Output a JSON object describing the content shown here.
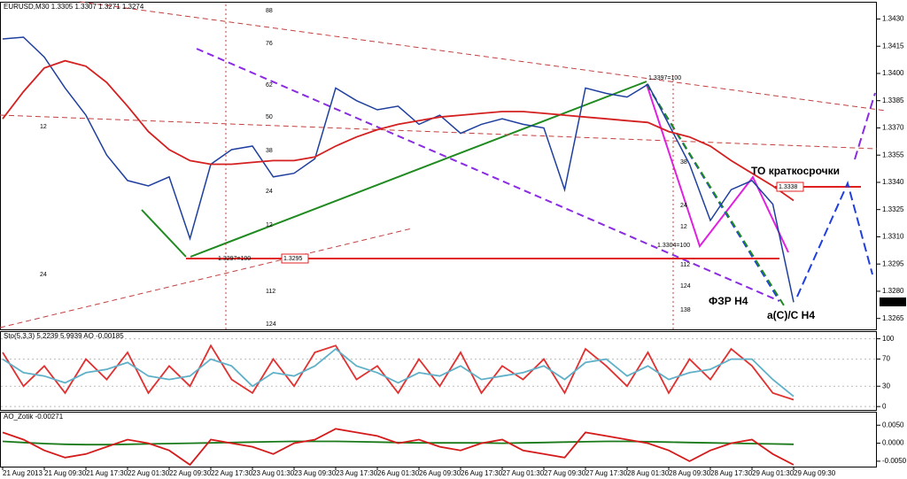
{
  "chart_data": [
    {
      "type": "line",
      "title": "EURUSD,M30  1.3305 1.3307 1.3271 1.3274",
      "categories": [
        "21 Aug 2013",
        null,
        "21 Aug 09:30",
        null,
        "21 Aug 17:30",
        null,
        "22 Aug 01:30",
        null,
        "22 Aug 09:30",
        null,
        "22 Aug 17:30",
        null,
        "23 Aug 01:30",
        null,
        "23 Aug 09:30",
        null,
        "23 Aug 17:30",
        null,
        "26 Aug 01:30",
        null,
        "26 Aug 09:30",
        null,
        "26 Aug 17:30",
        null,
        "27 Aug 01:30",
        null,
        "27 Aug 09:30",
        null,
        "27 Aug 17:30",
        null,
        "28 Aug 01:30",
        null,
        "28 Aug 09:30",
        null,
        "28 Aug 17:30",
        null,
        "29 Aug 01:30",
        null,
        "29 Aug 09:30"
      ],
      "series": [
        {
          "color": "#1f3f9f",
          "values": [
            1.3419,
            1.342,
            1.3409,
            1.3392,
            1.3377,
            1.3355,
            1.3341,
            1.3338,
            1.3343,
            1.3309,
            1.335,
            1.3358,
            1.336,
            1.3343,
            1.3345,
            1.3353,
            1.3392,
            1.3385,
            1.338,
            1.3382,
            1.3372,
            1.3377,
            1.3367,
            1.3372,
            1.3375,
            1.3372,
            1.337,
            1.3336,
            1.3392,
            1.3389,
            1.3387,
            1.3394,
            1.3372,
            1.335,
            1.3319,
            1.3336,
            1.3341,
            1.3328,
            1.3274
          ]
        },
        {
          "color": "#d42020",
          "values": [
            1.3375,
            1.339,
            1.3403,
            1.3407,
            1.3404,
            1.3395,
            1.3382,
            1.3368,
            1.3358,
            1.3352,
            1.335,
            1.335,
            1.3351,
            1.3352,
            1.3352,
            1.3354,
            1.336,
            1.3365,
            1.3369,
            1.3372,
            1.3374,
            1.3376,
            1.3377,
            1.3378,
            1.3379,
            1.3379,
            1.3378,
            1.3377,
            1.3376,
            1.3375,
            1.3374,
            1.3373,
            1.3368,
            1.3365,
            1.336,
            1.3352,
            1.3345,
            1.3338,
            1.333
          ]
        }
      ],
      "ylim": [
        1.3259,
        1.3439
      ],
      "yticks": [
        {
          "value": 1.343,
          "label": "1.3430"
        },
        1.3415,
        {
          "value": 1.34,
          "label": "1.3400"
        },
        1.3385,
        {
          "value": 1.337,
          "label": "1.3370"
        },
        1.3355,
        {
          "value": 1.334,
          "label": "1.3340"
        },
        1.3325,
        {
          "value": 1.331,
          "label": "1.3310"
        },
        1.3295,
        {
          "value": 1.328,
          "label": "1.3280"
        },
        1.3265
      ],
      "annotations": [
        "ТО краткосрочки",
        "ФЗР H4",
        "a(C)/C H4",
        "1.3397=100",
        "1.3304=100",
        "1.3338",
        "1.3297=100",
        "1.3295",
        "1.3274",
        "88",
        "76",
        "62",
        "50",
        "38",
        "24",
        "12",
        "112",
        "124",
        "12",
        "24",
        "38",
        "24",
        "12",
        "112",
        "124",
        "138"
      ]
    },
    {
      "type": "line",
      "title": "Sto(5,3,3) 5.2239 5.9939  AO -0.00185",
      "series": [
        {
          "color": "#e03030",
          "values": [
            80,
            30,
            60,
            20,
            70,
            40,
            80,
            20,
            60,
            30,
            90,
            40,
            20,
            70,
            30,
            80,
            90,
            40,
            60,
            20,
            70,
            30,
            80,
            20,
            60,
            40,
            70,
            20,
            85,
            60,
            30,
            80,
            20,
            70,
            40,
            85,
            60,
            20,
            10
          ]
        },
        {
          "color": "#5fb0c8",
          "values": [
            70,
            50,
            45,
            35,
            50,
            55,
            65,
            45,
            40,
            45,
            70,
            60,
            30,
            50,
            45,
            60,
            85,
            60,
            50,
            35,
            50,
            45,
            60,
            40,
            45,
            50,
            60,
            40,
            65,
            70,
            45,
            60,
            40,
            50,
            55,
            70,
            70,
            40,
            15
          ]
        }
      ],
      "ylim": [
        -5,
        110
      ],
      "yticks": [
        0,
        30,
        70,
        100
      ]
    },
    {
      "type": "line",
      "title": "AO_Zotik -0.00271",
      "series": [
        {
          "color": "#1a7a1a",
          "values": [
            0.0005,
            0.0002,
            -0.0001,
            -0.0003,
            -0.0004,
            -0.0004,
            -0.0003,
            -0.0002,
            -0.0001,
            0.0,
            0.0001,
            0.0002,
            0.0003,
            0.0004,
            0.0005,
            0.0005,
            0.0005,
            0.0004,
            0.0003,
            0.0002,
            0.0001,
            0.0001,
            0.0001,
            0.0001,
            0.0,
            0.0001,
            0.0002,
            0.0003,
            0.0004,
            0.0005,
            0.0005,
            0.0004,
            0.0003,
            0.0002,
            0.0001,
            0.0,
            -0.0001,
            -0.0002,
            -0.0003
          ]
        },
        {
          "color": "#d41a1a",
          "values": [
            0.003,
            0.001,
            -0.002,
            -0.004,
            -0.003,
            -0.001,
            0.001,
            0.0,
            -0.002,
            -0.006,
            0.001,
            0.0,
            -0.001,
            -0.003,
            0.0,
            0.001,
            0.004,
            0.003,
            0.002,
            0.0,
            0.001,
            -0.001,
            -0.002,
            0.0,
            0.001,
            -0.002,
            -0.003,
            -0.004,
            0.003,
            0.002,
            0.001,
            0.0,
            -0.002,
            -0.005,
            -0.002,
            0.0,
            0.001,
            -0.003,
            -0.006
          ]
        }
      ],
      "ylim": [
        -0.0065,
        0.0085
      ],
      "yticks": [
        {
          "value": 0.005,
          "label": "0.0050"
        },
        {
          "value": 0.0,
          "label": "0.0000"
        },
        {
          "value": -0.005,
          "label": "-0.0050"
        }
      ]
    }
  ]
}
